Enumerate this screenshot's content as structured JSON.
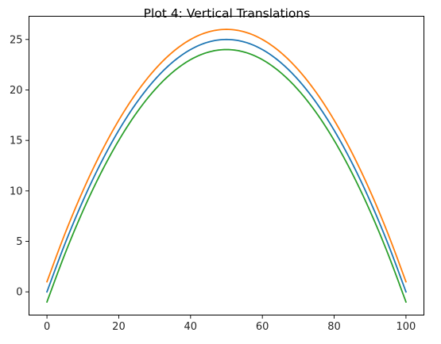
{
  "chart_data": {
    "type": "line",
    "title": "Plot 4: Vertical Translations",
    "xlabel": "",
    "ylabel": "",
    "xlim": [
      -5,
      105
    ],
    "ylim": [
      -2.3,
      27.3
    ],
    "xticks": [
      0,
      20,
      40,
      60,
      80,
      100
    ],
    "yticks": [
      0,
      5,
      10,
      15,
      20,
      25
    ],
    "grid": false,
    "legend": null,
    "x": [
      0,
      5,
      10,
      15,
      20,
      25,
      30,
      35,
      40,
      45,
      50,
      55,
      60,
      65,
      70,
      75,
      80,
      85,
      90,
      95,
      100
    ],
    "series": [
      {
        "color": "#1f77b4",
        "values": [
          0,
          4.75,
          9,
          12.75,
          16,
          18.75,
          21,
          22.75,
          24,
          24.75,
          25,
          24.75,
          24,
          22.75,
          21,
          18.75,
          16,
          12.75,
          9,
          4.75,
          0
        ]
      },
      {
        "color": "#ff7f0e",
        "values": [
          1,
          5.75,
          10,
          13.75,
          17,
          19.75,
          22,
          23.75,
          25,
          25.75,
          26,
          25.75,
          25,
          23.75,
          22,
          19.75,
          17,
          13.75,
          10,
          5.75,
          1
        ]
      },
      {
        "color": "#2ca02c",
        "values": [
          -1,
          3.75,
          8,
          11.75,
          15,
          17.75,
          20,
          21.75,
          23,
          23.75,
          24,
          23.75,
          23,
          21.75,
          20,
          17.75,
          15,
          11.75,
          8,
          3.75,
          -1
        ]
      }
    ]
  }
}
